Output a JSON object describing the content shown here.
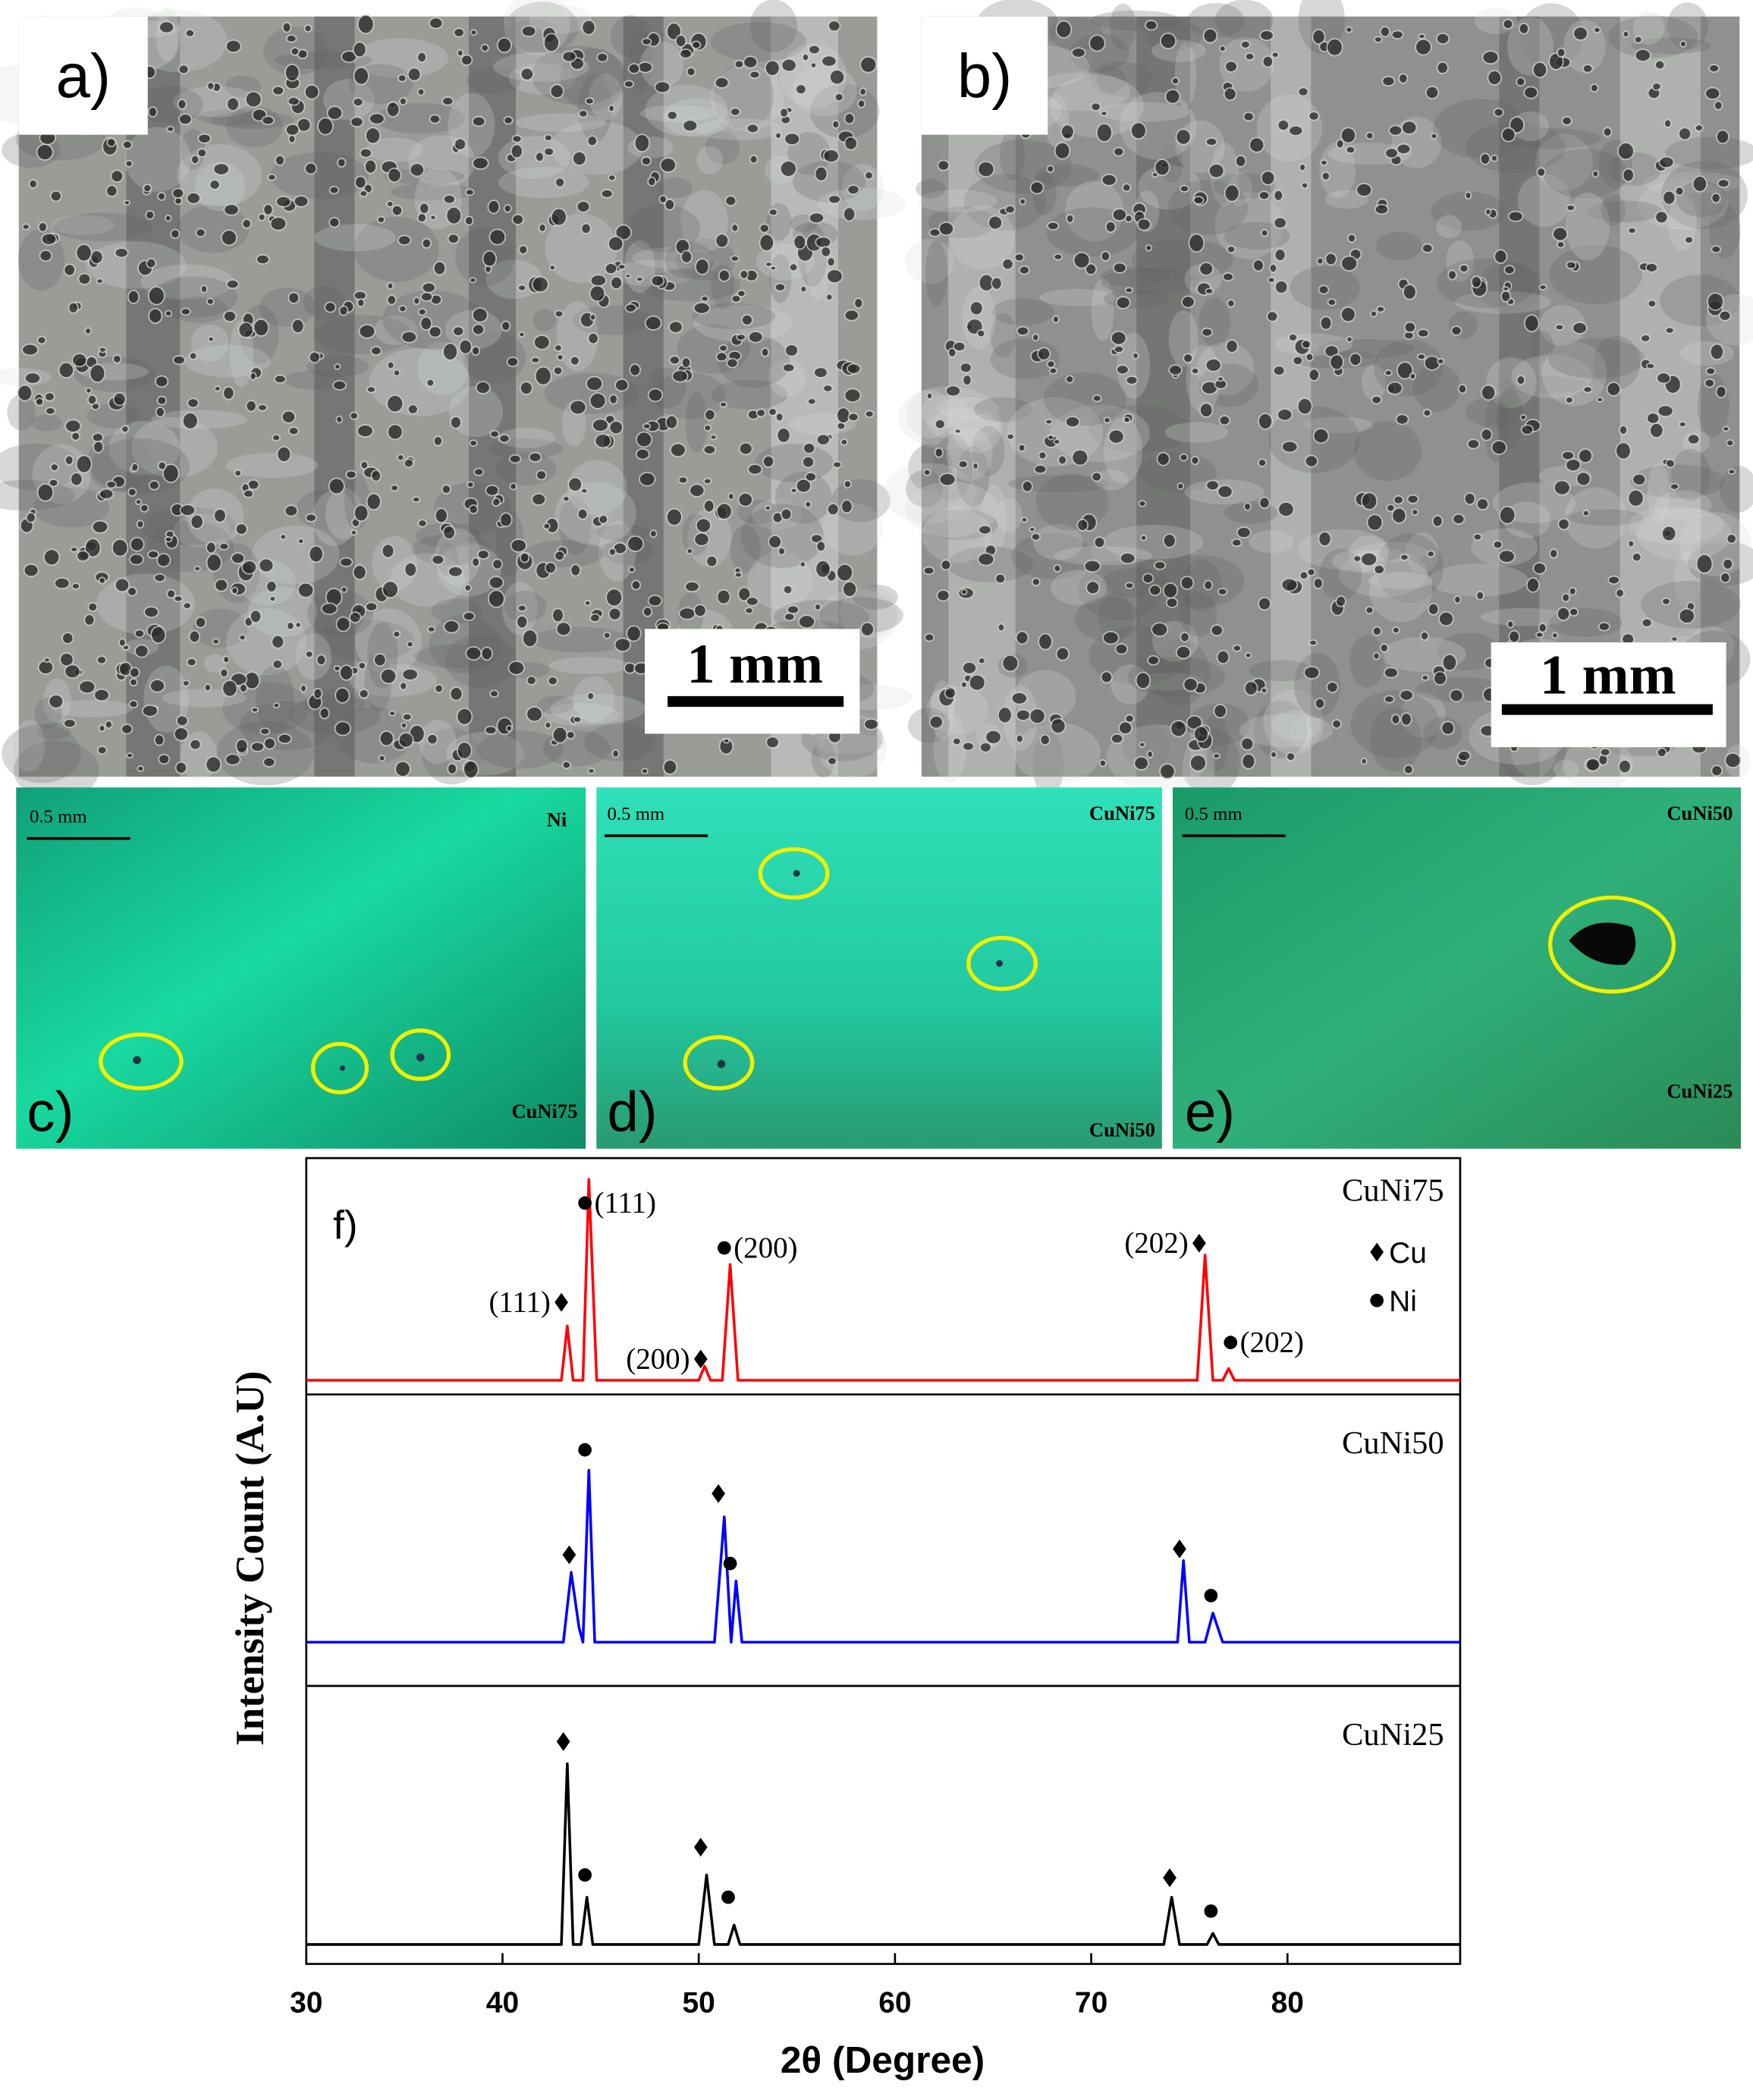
{
  "panels": {
    "a": {
      "label": "a)",
      "scale_bar": "1 mm"
    },
    "b": {
      "label": "b)",
      "scale_bar": "1 mm"
    },
    "c": {
      "label": "c)",
      "scale_bar": "0.5 mm",
      "top_layer": "Ni",
      "bottom_layer": "CuNi75"
    },
    "d": {
      "label": "d)",
      "scale_bar": "0.5 mm",
      "top_layer": "CuNi75",
      "bottom_layer": "CuNi50"
    },
    "e": {
      "label": "e)",
      "scale_bar": "0.5 mm",
      "top_layer": "CuNi50",
      "bottom_layer": "CuNi25"
    }
  },
  "chart_data": {
    "type": "line",
    "panel_label": "f)",
    "x_label": "2θ (Degree)",
    "y_label": "Intensity Count (A.U)",
    "xlim": [
      30,
      88.8
    ],
    "xticks": [
      30,
      40,
      50,
      60,
      70,
      80
    ],
    "ylim": [
      0,
      100
    ],
    "phases": [
      {
        "name": "Cu",
        "symbol": "diamond"
      },
      {
        "name": "Ni",
        "symbol": "circle"
      }
    ],
    "series": [
      {
        "name": "CuNi75",
        "color": "#ff0000",
        "x": [
          30,
          43.0,
          43.3,
          43.6,
          44.1,
          44.4,
          44.8,
          50.0,
          50.3,
          50.6,
          51.2,
          51.6,
          52.0,
          75.4,
          75.8,
          76.2,
          76.7,
          77.0,
          77.3,
          88.8
        ],
        "values": [
          6,
          6,
          29,
          6,
          6,
          91,
          6,
          6,
          12,
          6,
          6,
          55,
          6,
          6,
          59,
          6,
          6,
          11,
          6,
          6
        ],
        "markers": [
          {
            "x": 43.0,
            "y": 39,
            "phase": 0,
            "label": "(111)",
            "side": "left"
          },
          {
            "x": 44.2,
            "y": 81,
            "phase": 1,
            "label": "(111)",
            "side": "right"
          },
          {
            "x": 50.1,
            "y": 15,
            "phase": 0,
            "label": "(200)",
            "side": "left"
          },
          {
            "x": 51.3,
            "y": 62,
            "phase": 1,
            "label": "(200)",
            "side": "right"
          },
          {
            "x": 75.5,
            "y": 64,
            "phase": 0,
            "label": "(202)",
            "side": "left"
          },
          {
            "x": 77.1,
            "y": 22,
            "phase": 1,
            "label": "(202)",
            "side": "right"
          }
        ]
      },
      {
        "name": "CuNi50",
        "color": "#0000ff",
        "x": [
          30,
          43.1,
          43.5,
          43.9,
          44.1,
          44.4,
          44.7,
          50.8,
          51.3,
          51.65,
          51.9,
          52.2,
          74.4,
          74.7,
          75.0,
          75.8,
          76.2,
          76.7,
          88.8
        ],
        "values": [
          15,
          15,
          39,
          20,
          15,
          74,
          15,
          15,
          58,
          15,
          36,
          15,
          15,
          43,
          15,
          15,
          25,
          15,
          15
        ],
        "markers": [
          {
            "x": 43.4,
            "y": 45,
            "phase": 0
          },
          {
            "x": 44.2,
            "y": 81,
            "phase": 1
          },
          {
            "x": 51.0,
            "y": 66,
            "phase": 0
          },
          {
            "x": 51.6,
            "y": 42,
            "phase": 1
          },
          {
            "x": 74.5,
            "y": 47,
            "phase": 0
          },
          {
            "x": 76.1,
            "y": 31,
            "phase": 1
          }
        ]
      },
      {
        "name": "CuNi25",
        "color": "#000000",
        "x": [
          30,
          43.0,
          43.3,
          43.6,
          44.0,
          44.3,
          44.6,
          50.0,
          50.4,
          50.8,
          51.5,
          51.8,
          52.1,
          73.7,
          74.1,
          74.5,
          75.9,
          76.2,
          76.5,
          88.8
        ],
        "values": [
          7,
          7,
          72,
          7,
          7,
          24,
          7,
          7,
          32,
          7,
          7,
          14,
          7,
          7,
          24,
          7,
          7,
          11,
          7,
          7
        ],
        "markers": [
          {
            "x": 43.1,
            "y": 80,
            "phase": 0
          },
          {
            "x": 44.2,
            "y": 32,
            "phase": 1
          },
          {
            "x": 50.1,
            "y": 42,
            "phase": 0
          },
          {
            "x": 51.5,
            "y": 24,
            "phase": 1
          },
          {
            "x": 74.0,
            "y": 31,
            "phase": 0
          },
          {
            "x": 76.1,
            "y": 19,
            "phase": 1
          }
        ]
      }
    ]
  }
}
